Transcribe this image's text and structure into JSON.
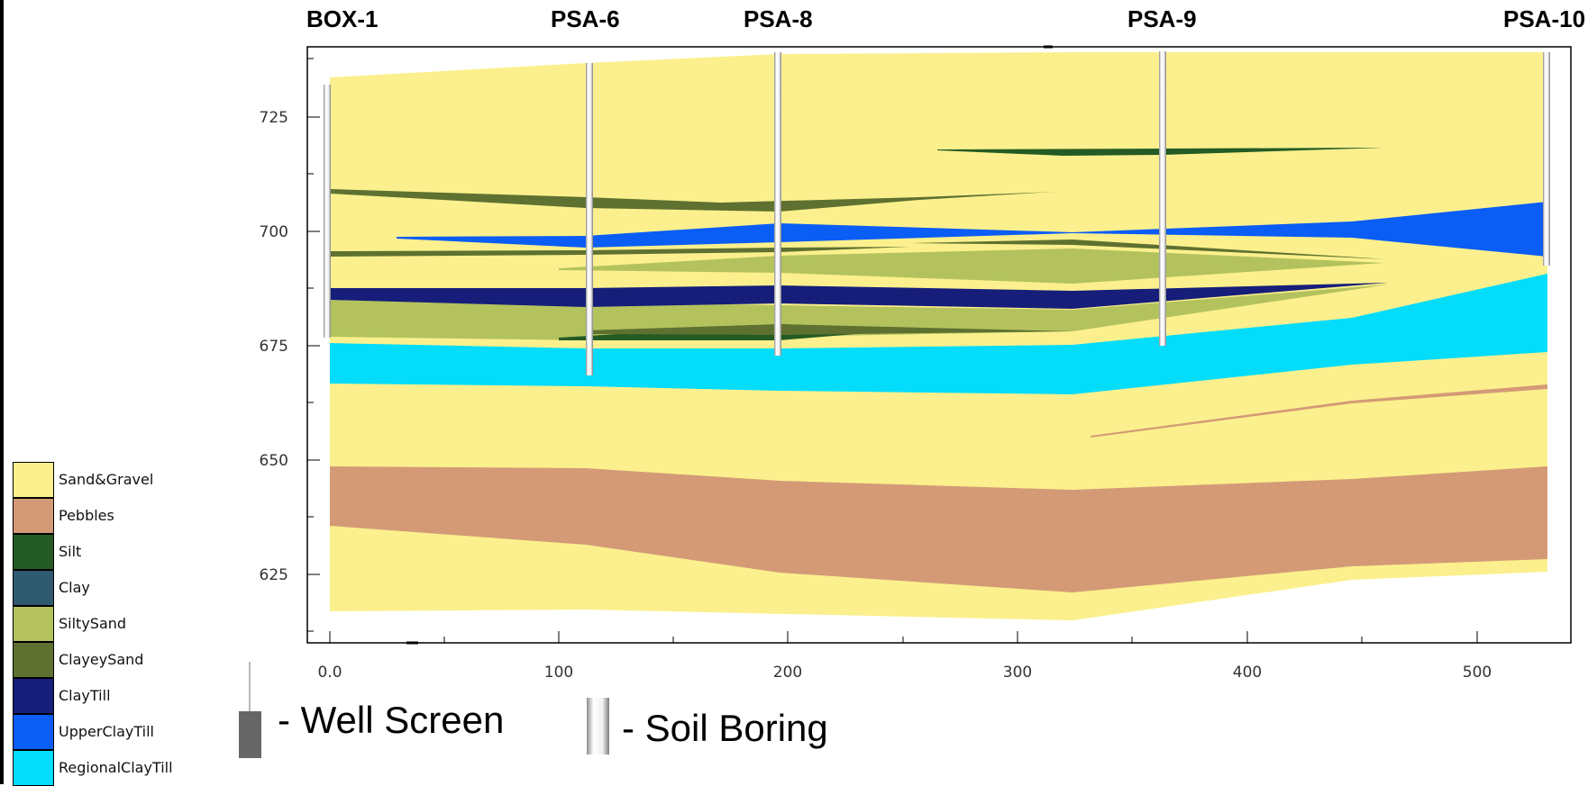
{
  "borings": [
    {
      "name": "BOX-1",
      "x": 0
    },
    {
      "name": "PSA-6",
      "x": 112
    },
    {
      "name": "PSA-8",
      "x": 195
    },
    {
      "name": "PSA-9",
      "x": 362
    },
    {
      "name": "PSA-10",
      "x": 530
    }
  ],
  "axes": {
    "x_ticks": [
      "0.0",
      "100",
      "200",
      "300",
      "400",
      "500"
    ],
    "y_ticks": [
      "725",
      "700",
      "675",
      "650",
      "625"
    ],
    "x_range": [
      -10,
      540
    ],
    "y_range": [
      610,
      740
    ]
  },
  "colors": {
    "sand_gravel": "#fbf08d",
    "pebbles": "#d49a76",
    "silt": "#245b24",
    "clay": "#305a70",
    "silty_sand": "#b3c25d",
    "clayey_sand": "#5e7130",
    "clay_till": "#161e7a",
    "upper_clay_till": "#0a5df5",
    "regional_clay_till": "#03dcfb"
  },
  "legend": [
    {
      "label": "Sand&Gravel",
      "color": "#fbf08d"
    },
    {
      "label": "Pebbles",
      "color": "#d49a76"
    },
    {
      "label": "Silt",
      "color": "#245b24"
    },
    {
      "label": "Clay",
      "color": "#305a70"
    },
    {
      "label": "SiltySand",
      "color": "#b3c25d"
    },
    {
      "label": "ClayeySand",
      "color": "#5e7130"
    },
    {
      "label": "ClayTill",
      "color": "#161e7a"
    },
    {
      "label": "UpperClayTill",
      "color": "#0a5df5"
    },
    {
      "label": "RegionalClayTill",
      "color": "#03dcfb"
    }
  ],
  "key": {
    "well_screen": "- Well Screen",
    "soil_boring": "- Soil Boring"
  }
}
